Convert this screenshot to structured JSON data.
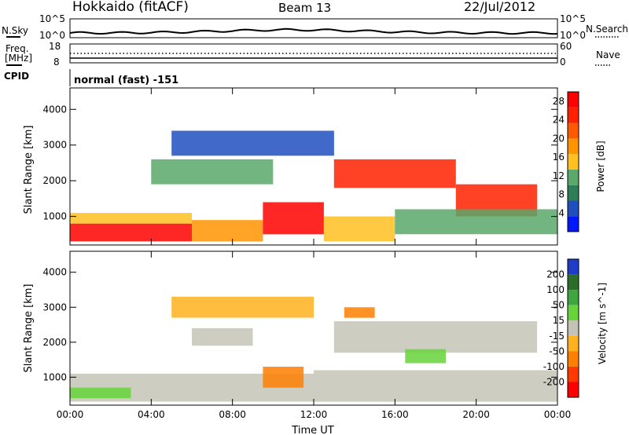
{
  "header": {
    "station": "Hokkaido (fitACF)",
    "beam": "Beam 13",
    "date": "22/Jul/2012"
  },
  "noise_panel": {
    "left_label": "N.Sky",
    "left_ticks": [
      "10^5",
      "10^0"
    ],
    "right_ticks": [
      "10^5",
      "10^0"
    ],
    "right_label": "N.Search"
  },
  "freq_panel": {
    "left_label_1": "Freq.",
    "left_label_2": "[MHz]",
    "left_ticks": [
      "18",
      "8"
    ],
    "right_ticks": [
      "60",
      "0"
    ],
    "right_label": "Nave"
  },
  "cpid_panel": {
    "label": "CPID",
    "mode": "normal (fast) -151"
  },
  "colors": {
    "power_scale": [
      "#0018ff",
      "#1f4fbf",
      "#2e7f57",
      "#5aa86a",
      "#ffc020",
      "#ff9400",
      "#ff5a00",
      "#ff2000",
      "#ff0000"
    ],
    "velocity_scale": [
      "#1e3cc8",
      "#2a6e2a",
      "#3fa53f",
      "#66d33a",
      "#c4c4b6",
      "#ffb11e",
      "#ff7f00",
      "#ff3a00",
      "#ff0000"
    ],
    "grid": "#999999"
  },
  "chart_data": [
    {
      "type": "heatmap",
      "name": "power",
      "ylabel": "Slant Range [km]",
      "xlabel": "",
      "xlim": [
        "00:00",
        "24:00"
      ],
      "ylim": [
        200,
        4600
      ],
      "x_ticks": [
        "00:00",
        "04:00",
        "08:00",
        "12:00",
        "16:00",
        "20:00",
        "00:00"
      ],
      "y_ticks": [
        1000,
        2000,
        3000,
        4000
      ],
      "colorbar": {
        "label": "Power [dB]",
        "ticks": [
          4,
          8,
          12,
          16,
          20,
          24,
          28
        ],
        "range": [
          0,
          30
        ]
      },
      "regions": [
        {
          "t": [
            0,
            6
          ],
          "range": [
            300,
            800
          ],
          "value": 30
        },
        {
          "t": [
            0,
            6
          ],
          "range": [
            800,
            1100
          ],
          "value": 16
        },
        {
          "t": [
            6,
            9.5
          ],
          "range": [
            300,
            900
          ],
          "value": 18
        },
        {
          "t": [
            9.5,
            12.5
          ],
          "range": [
            500,
            1400
          ],
          "value": 28
        },
        {
          "t": [
            12.5,
            16
          ],
          "range": [
            300,
            1000
          ],
          "value": 14
        },
        {
          "t": [
            13,
            19
          ],
          "range": [
            1800,
            2600
          ],
          "value": 26
        },
        {
          "t": [
            19,
            23
          ],
          "range": [
            1000,
            1900
          ],
          "value": 24
        },
        {
          "t": [
            16,
            24
          ],
          "range": [
            500,
            1200
          ],
          "value": 10
        },
        {
          "t": [
            4,
            10
          ],
          "range": [
            1900,
            2600
          ],
          "value": 10
        },
        {
          "t": [
            5,
            13
          ],
          "range": [
            2700,
            3400
          ],
          "value": 6
        }
      ]
    },
    {
      "type": "heatmap",
      "name": "velocity",
      "ylabel": "Slant Range [km]",
      "xlabel": "Time UT",
      "xlim": [
        "00:00",
        "24:00"
      ],
      "ylim": [
        200,
        4600
      ],
      "x_ticks": [
        "00:00",
        "04:00",
        "08:00",
        "12:00",
        "16:00",
        "20:00",
        "00:00"
      ],
      "y_ticks": [
        1000,
        2000,
        3000,
        4000
      ],
      "colorbar": {
        "label": "Velocity [m s^-1]",
        "ticks": [
          200,
          100,
          50,
          15,
          -15,
          -50,
          -100,
          -200
        ],
        "range": [
          -250,
          250
        ]
      },
      "regions": [
        {
          "t": [
            0,
            12
          ],
          "range": [
            300,
            1100
          ],
          "value": 0
        },
        {
          "t": [
            0,
            3
          ],
          "range": [
            400,
            700
          ],
          "value": 30
        },
        {
          "t": [
            9.5,
            11.5
          ],
          "range": [
            700,
            1300
          ],
          "value": -60
        },
        {
          "t": [
            12,
            24
          ],
          "range": [
            300,
            1200
          ],
          "value": 0
        },
        {
          "t": [
            13,
            23
          ],
          "range": [
            1700,
            2600
          ],
          "value": 0
        },
        {
          "t": [
            13.5,
            15
          ],
          "range": [
            2700,
            3000
          ],
          "value": -50
        },
        {
          "t": [
            16.5,
            18.5
          ],
          "range": [
            1400,
            1800
          ],
          "value": 30
        },
        {
          "t": [
            5,
            12
          ],
          "range": [
            2700,
            3300
          ],
          "value": -40
        },
        {
          "t": [
            6,
            9
          ],
          "range": [
            1900,
            2400
          ],
          "value": 0
        }
      ]
    }
  ]
}
